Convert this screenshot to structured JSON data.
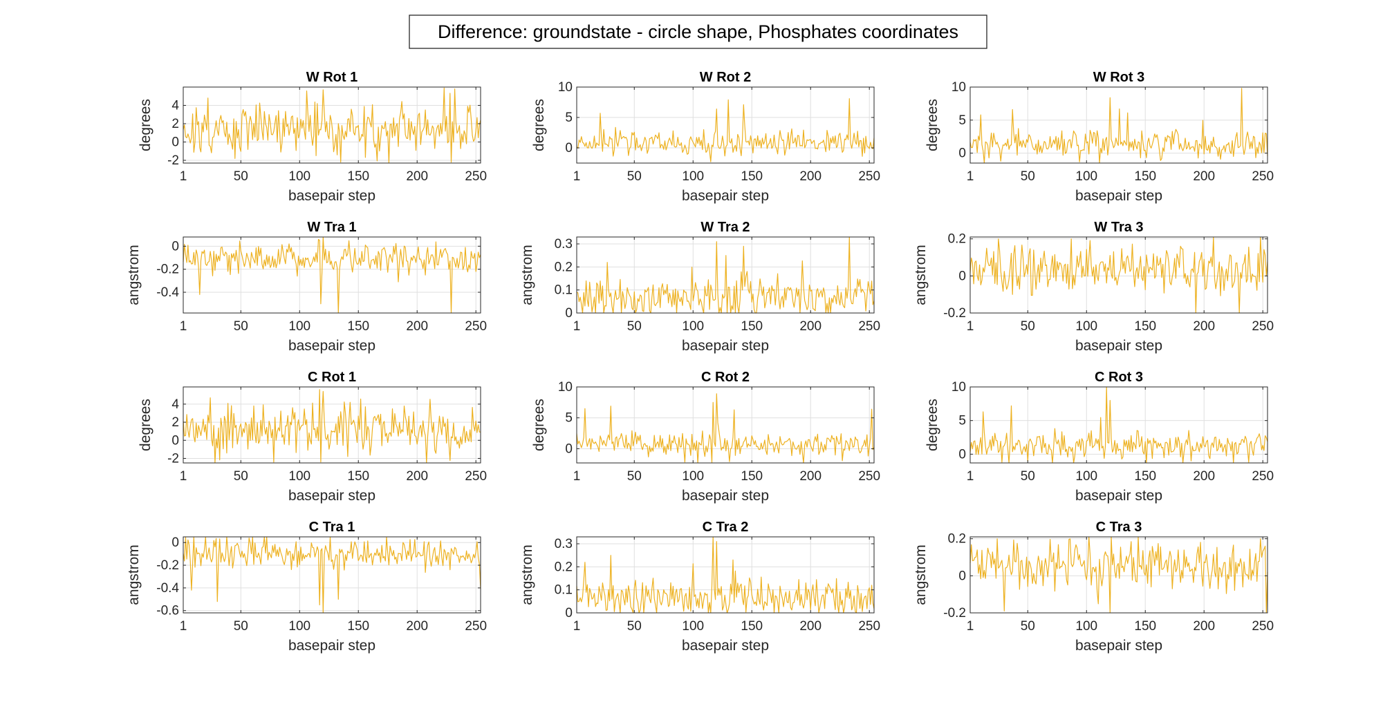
{
  "figure": {
    "title": "Difference: groundstate - circle shape, Phosphates coordinates",
    "line_color": "#EDB120"
  },
  "chart_data": [
    {
      "type": "line",
      "panel": "W Rot 1",
      "title": "W Rot 1",
      "xlabel": "basepair step",
      "ylabel": "degrees",
      "xlim": [
        1,
        254
      ],
      "ylim": [
        -2.3,
        6
      ],
      "xticks": [
        1,
        50,
        100,
        150,
        200,
        250
      ],
      "yticks": [
        -2,
        0,
        2,
        4
      ],
      "ytick_labels": [
        "-2",
        "0",
        "2",
        "4"
      ],
      "series_profile": {
        "mean": 1.3,
        "std": 1.3,
        "spikes": [
          [
            22,
            4.8
          ],
          [
            120,
            5.7
          ],
          [
            223,
            5.9
          ],
          [
            232,
            5.8
          ],
          [
            45,
            -1.8
          ],
          [
            135,
            -2.2
          ],
          [
            229,
            -2.2
          ]
        ]
      }
    },
    {
      "type": "line",
      "panel": "W Rot 2",
      "title": "W Rot 2",
      "xlabel": "basepair step",
      "ylabel": "degrees",
      "xlim": [
        1,
        254
      ],
      "ylim": [
        -2.5,
        10
      ],
      "xticks": [
        1,
        50,
        100,
        150,
        200,
        250
      ],
      "yticks": [
        0,
        5,
        10
      ],
      "ytick_labels": [
        "0",
        "5",
        "10"
      ],
      "series_profile": {
        "mean": 0.9,
        "std": 0.9,
        "spikes": [
          [
            21,
            5.7
          ],
          [
            120,
            6.4
          ],
          [
            130,
            7.9
          ],
          [
            143,
            7.1
          ],
          [
            233,
            8.1
          ],
          [
            115,
            -2.3
          ],
          [
            244,
            -1.4
          ]
        ]
      }
    },
    {
      "type": "line",
      "panel": "W Rot 3",
      "title": "W Rot 3",
      "xlabel": "basepair step",
      "ylabel": "degrees",
      "xlim": [
        1,
        254
      ],
      "ylim": [
        -1.5,
        10
      ],
      "xticks": [
        1,
        50,
        100,
        150,
        200,
        250
      ],
      "yticks": [
        0,
        5,
        10
      ],
      "ytick_labels": [
        "0",
        "5",
        "10"
      ],
      "series_profile": {
        "mean": 1.4,
        "std": 1.0,
        "spikes": [
          [
            10,
            5.8
          ],
          [
            37,
            6.6
          ],
          [
            120,
            8.4
          ],
          [
            128,
            6.7
          ],
          [
            135,
            6.1
          ],
          [
            232,
            9.8
          ],
          [
            111,
            -1.5
          ]
        ]
      }
    },
    {
      "type": "line",
      "panel": "W Tra 1",
      "title": "W Tra 1",
      "xlabel": "basepair step",
      "ylabel": "angstrom",
      "xlim": [
        1,
        254
      ],
      "ylim": [
        -0.58,
        0.08
      ],
      "xticks": [
        1,
        50,
        100,
        150,
        200,
        250
      ],
      "yticks": [
        -0.4,
        -0.2,
        0
      ],
      "ytick_labels": [
        "-0.4",
        "-0.2",
        "0"
      ],
      "series_profile": {
        "mean": -0.1,
        "std": 0.06,
        "spikes": [
          [
            15,
            -0.42
          ],
          [
            118,
            -0.5
          ],
          [
            133,
            -0.58
          ],
          [
            229,
            -0.58
          ],
          [
            117,
            0.05
          ]
        ]
      }
    },
    {
      "type": "line",
      "panel": "W Tra 2",
      "title": "W Tra 2",
      "xlabel": "basepair step",
      "ylabel": "angstrom",
      "xlim": [
        1,
        254
      ],
      "ylim": [
        0,
        0.33
      ],
      "xticks": [
        1,
        50,
        100,
        150,
        200,
        250
      ],
      "yticks": [
        0,
        0.1,
        0.2,
        0.3
      ],
      "ytick_labels": [
        "0",
        "0.1",
        "0.2",
        "0.3"
      ],
      "series_profile": {
        "mean": 0.07,
        "std": 0.04,
        "spikes": [
          [
            27,
            0.22
          ],
          [
            120,
            0.31
          ],
          [
            128,
            0.25
          ],
          [
            143,
            0.29
          ],
          [
            233,
            0.33
          ]
        ]
      }
    },
    {
      "type": "line",
      "panel": "W Tra 3",
      "title": "W Tra 3",
      "xlabel": "basepair step",
      "ylabel": "angstrom",
      "xlim": [
        1,
        254
      ],
      "ylim": [
        -0.2,
        0.21
      ],
      "xticks": [
        1,
        50,
        100,
        150,
        200,
        250
      ],
      "yticks": [
        -0.2,
        0,
        0.2
      ],
      "ytick_labels": [
        "-0.2",
        "0",
        "0.2"
      ],
      "series_profile": {
        "mean": 0.04,
        "std": 0.06,
        "spikes": [
          [
            25,
            0.2
          ],
          [
            87,
            0.2
          ],
          [
            248,
            0.21
          ],
          [
            230,
            -0.21
          ],
          [
            37,
            -0.1
          ]
        ]
      }
    },
    {
      "type": "line",
      "panel": "C Rot 1",
      "title": "C Rot 1",
      "xlabel": "basepair step",
      "ylabel": "degrees",
      "xlim": [
        1,
        254
      ],
      "ylim": [
        -2.5,
        5.9
      ],
      "xticks": [
        1,
        50,
        100,
        150,
        200,
        250
      ],
      "yticks": [
        -2,
        0,
        2,
        4
      ],
      "ytick_labels": [
        "-2",
        "0",
        "2",
        "4"
      ],
      "series_profile": {
        "mean": 1.2,
        "std": 1.3,
        "spikes": [
          [
            24,
            4.7
          ],
          [
            117,
            5.6
          ],
          [
            120,
            5.4
          ],
          [
            28,
            -2.5
          ],
          [
            118,
            -2.4
          ],
          [
            141,
            -1.8
          ]
        ]
      }
    },
    {
      "type": "line",
      "panel": "C Rot 2",
      "title": "C Rot 2",
      "xlabel": "basepair step",
      "ylabel": "degrees",
      "xlim": [
        1,
        254
      ],
      "ylim": [
        -2.3,
        10
      ],
      "xticks": [
        1,
        50,
        100,
        150,
        200,
        250
      ],
      "yticks": [
        0,
        5,
        10
      ],
      "ytick_labels": [
        "0",
        "5",
        "10"
      ],
      "series_profile": {
        "mean": 0.8,
        "std": 0.9,
        "spikes": [
          [
            8,
            6.5
          ],
          [
            30,
            6.9
          ],
          [
            117,
            7.5
          ],
          [
            120,
            8.9
          ],
          [
            135,
            6.3
          ],
          [
            252,
            6.4
          ],
          [
            116,
            -2.2
          ],
          [
            131,
            -2.1
          ]
        ]
      }
    },
    {
      "type": "line",
      "panel": "C Rot 3",
      "title": "C Rot 3",
      "xlabel": "basepair step",
      "ylabel": "degrees",
      "xlim": [
        1,
        254
      ],
      "ylim": [
        -1.3,
        10
      ],
      "xticks": [
        1,
        50,
        100,
        150,
        200,
        250
      ],
      "yticks": [
        0,
        5,
        10
      ],
      "ytick_labels": [
        "0",
        "5",
        "10"
      ],
      "series_profile": {
        "mean": 1.3,
        "std": 1.0,
        "spikes": [
          [
            12,
            6.3
          ],
          [
            36,
            7.2
          ],
          [
            117,
            10
          ],
          [
            120,
            8
          ],
          [
            28,
            -1.2
          ],
          [
            238,
            -1.2
          ]
        ]
      }
    },
    {
      "type": "line",
      "panel": "C Tra 1",
      "title": "C Tra 1",
      "xlabel": "basepair step",
      "ylabel": "angstrom",
      "xlim": [
        1,
        254
      ],
      "ylim": [
        -0.62,
        0.05
      ],
      "xticks": [
        1,
        50,
        100,
        150,
        200,
        250
      ],
      "yticks": [
        -0.6,
        -0.4,
        -0.2,
        0
      ],
      "ytick_labels": [
        "-0.6",
        "-0.4",
        "-0.2",
        "0"
      ],
      "series_profile": {
        "mean": -0.1,
        "std": 0.06,
        "spikes": [
          [
            8,
            -0.42
          ],
          [
            30,
            -0.52
          ],
          [
            117,
            -0.55
          ],
          [
            120,
            -0.62
          ],
          [
            133,
            -0.5
          ],
          [
            254,
            -0.41
          ]
        ]
      }
    },
    {
      "type": "line",
      "panel": "C Tra 2",
      "title": "C Tra 2",
      "xlabel": "basepair step",
      "ylabel": "angstrom",
      "xlim": [
        1,
        254
      ],
      "ylim": [
        0,
        0.33
      ],
      "xticks": [
        1,
        50,
        100,
        150,
        200,
        250
      ],
      "yticks": [
        0,
        0.1,
        0.2,
        0.3
      ],
      "ytick_labels": [
        "0",
        "0.1",
        "0.2",
        "0.3"
      ],
      "series_profile": {
        "mean": 0.07,
        "std": 0.04,
        "spikes": [
          [
            8,
            0.22
          ],
          [
            30,
            0.25
          ],
          [
            117,
            0.33
          ],
          [
            120,
            0.31
          ],
          [
            134,
            0.23
          ],
          [
            252,
            0.12
          ]
        ]
      }
    },
    {
      "type": "line",
      "panel": "C Tra 3",
      "title": "C Tra 3",
      "xlabel": "basepair step",
      "ylabel": "angstrom",
      "xlim": [
        1,
        254
      ],
      "ylim": [
        -0.2,
        0.21
      ],
      "xticks": [
        1,
        50,
        100,
        150,
        200,
        250
      ],
      "yticks": [
        -0.2,
        0,
        0.2
      ],
      "ytick_labels": [
        "-0.2",
        "0",
        "0.2"
      ],
      "series_profile": {
        "mean": 0.05,
        "std": 0.06,
        "spikes": [
          [
            24,
            0.2
          ],
          [
            86,
            0.2
          ],
          [
            248,
            0.2
          ],
          [
            30,
            -0.19
          ],
          [
            120,
            -0.2
          ],
          [
            253,
            -0.2
          ]
        ]
      }
    }
  ]
}
